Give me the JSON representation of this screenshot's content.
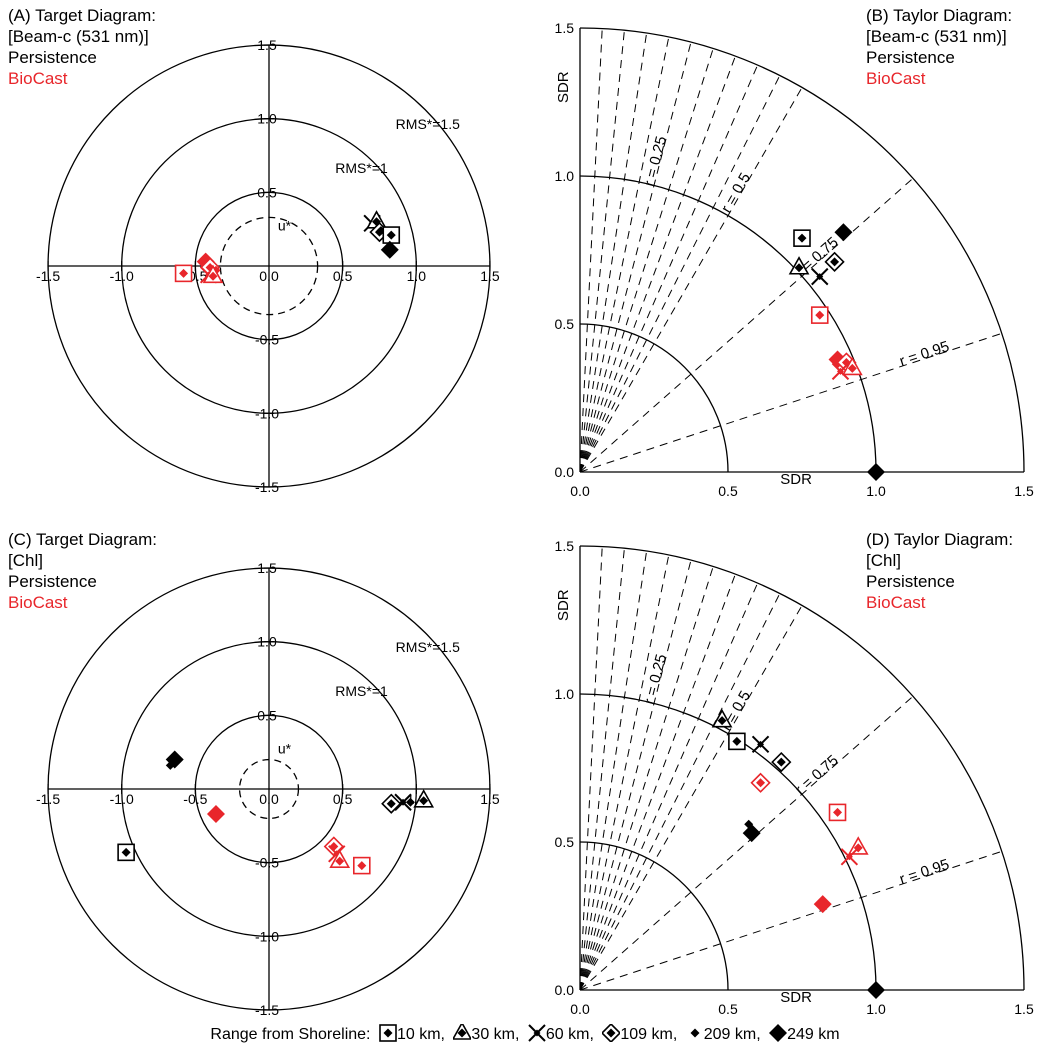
{
  "legend": {
    "title": "Range from Shoreline:",
    "items": [
      {
        "label": "10 km,",
        "marker": "boxed-diamond"
      },
      {
        "label": "30 km,",
        "marker": "triangle-diamond"
      },
      {
        "label": "60 km,",
        "marker": "cross"
      },
      {
        "label": "109 km,",
        "marker": "diamond-diamond"
      },
      {
        "label": "209 km,",
        "marker": "small-diamond"
      },
      {
        "label": "249 km",
        "marker": "large-diamond"
      }
    ]
  },
  "colors": {
    "persistence": "#000000",
    "biocast": "#e8262b"
  },
  "chart_data": [
    {
      "panel": "A",
      "type": "scatter",
      "title_lines": [
        "(A) Target Diagram:",
        "[Beam-c (531 nm)]"
      ],
      "series_labels": [
        "Persistence",
        "BioCast"
      ],
      "circles": [
        {
          "r": 0.5,
          "style": "solid"
        },
        {
          "r": 1.0,
          "style": "solid",
          "label": "RMS*=1"
        },
        {
          "r": 1.5,
          "style": "solid",
          "label": "RMS*=1.5"
        },
        {
          "r": 0.33,
          "style": "dashed",
          "label": "u*"
        }
      ],
      "xlim": [
        -1.5,
        1.5
      ],
      "ylim": [
        -1.5,
        1.5
      ],
      "ticks": [
        "-1.5",
        "-1.0",
        "-0.5",
        "0.0",
        "0.5",
        "1.0",
        "1.5"
      ],
      "points": [
        {
          "series": "Persistence",
          "marker": "cross",
          "x": 0.7,
          "y": 0.29
        },
        {
          "series": "Persistence",
          "marker": "triangle-diamond",
          "x": 0.73,
          "y": 0.3
        },
        {
          "series": "Persistence",
          "marker": "diamond-diamond",
          "x": 0.75,
          "y": 0.23
        },
        {
          "series": "Persistence",
          "marker": "small-diamond",
          "x": 0.76,
          "y": 0.24
        },
        {
          "series": "Persistence",
          "marker": "boxed-diamond",
          "x": 0.83,
          "y": 0.21
        },
        {
          "series": "Persistence",
          "marker": "large-diamond",
          "x": 0.82,
          "y": 0.11
        },
        {
          "series": "BioCast",
          "marker": "boxed-diamond",
          "x": -0.58,
          "y": -0.05
        },
        {
          "series": "BioCast",
          "marker": "large-diamond",
          "x": -0.43,
          "y": 0.03
        },
        {
          "series": "BioCast",
          "marker": "diamond-diamond",
          "x": -0.4,
          "y": -0.01
        },
        {
          "series": "BioCast",
          "marker": "small-diamond",
          "x": -0.36,
          "y": -0.03
        },
        {
          "series": "BioCast",
          "marker": "cross",
          "x": -0.41,
          "y": -0.06
        },
        {
          "series": "BioCast",
          "marker": "triangle-diamond",
          "x": -0.38,
          "y": -0.07
        }
      ]
    },
    {
      "panel": "B",
      "type": "scatter",
      "title_lines": [
        "(B) Taylor Diagram:",
        "[Beam-c (531 nm)]"
      ],
      "series_labels": [
        "Persistence",
        "BioCast"
      ],
      "xlabel": "SDR",
      "ylabel": "SDR",
      "arcs": [
        0.5,
        1.0,
        1.5
      ],
      "correlation_lines": [
        {
          "r": 0.25,
          "label": "r = 0.25"
        },
        {
          "r": 0.5,
          "label": "r = 0.5"
        },
        {
          "r": 0.75,
          "label": "r = 0.75"
        },
        {
          "r": 0.95,
          "label": "r = 0.95"
        }
      ],
      "xlim": [
        0,
        1.5
      ],
      "ylim": [
        0,
        1.5
      ],
      "xticks": [
        "0.0",
        "0.5",
        "1.0",
        "1.5"
      ],
      "yticks": [
        "0.0",
        "0.5",
        "1.0",
        "1.5"
      ],
      "reference_point": {
        "x": 1.0,
        "y": 0.0
      },
      "points": [
        {
          "series": "Persistence",
          "marker": "boxed-diamond",
          "x": 0.75,
          "y": 0.79
        },
        {
          "series": "Persistence",
          "marker": "large-diamond",
          "x": 0.89,
          "y": 0.81
        },
        {
          "series": "Persistence",
          "marker": "triangle-diamond",
          "x": 0.74,
          "y": 0.69
        },
        {
          "series": "Persistence",
          "marker": "cross",
          "x": 0.81,
          "y": 0.66
        },
        {
          "series": "Persistence",
          "marker": "diamond-diamond",
          "x": 0.86,
          "y": 0.71
        },
        {
          "series": "BioCast",
          "marker": "boxed-diamond",
          "x": 0.81,
          "y": 0.53
        },
        {
          "series": "BioCast",
          "marker": "large-diamond",
          "x": 0.87,
          "y": 0.38
        },
        {
          "series": "BioCast",
          "marker": "diamond-diamond",
          "x": 0.9,
          "y": 0.37
        },
        {
          "series": "BioCast",
          "marker": "triangle-diamond",
          "x": 0.92,
          "y": 0.35
        },
        {
          "series": "BioCast",
          "marker": "cross",
          "x": 0.88,
          "y": 0.34
        }
      ]
    },
    {
      "panel": "C",
      "type": "scatter",
      "title_lines": [
        "(C) Target Diagram:",
        "[Chl]"
      ],
      "series_labels": [
        "Persistence",
        "BioCast"
      ],
      "circles": [
        {
          "r": 0.5,
          "style": "solid"
        },
        {
          "r": 1.0,
          "style": "solid",
          "label": "RMS*=1"
        },
        {
          "r": 1.5,
          "style": "solid",
          "label": "RMS*=1.5"
        },
        {
          "r": 0.2,
          "style": "dashed",
          "label": "u*"
        }
      ],
      "xlim": [
        -1.5,
        1.5
      ],
      "ylim": [
        -1.5,
        1.5
      ],
      "ticks": [
        "-1.5",
        "-1.0",
        "-0.5",
        "0.0",
        "0.5",
        "1.0",
        "1.5"
      ],
      "points": [
        {
          "series": "Persistence",
          "marker": "large-diamond",
          "x": -0.64,
          "y": 0.2
        },
        {
          "series": "Persistence",
          "marker": "small-diamond",
          "x": -0.67,
          "y": 0.16
        },
        {
          "series": "Persistence",
          "marker": "boxed-diamond",
          "x": -0.97,
          "y": -0.43
        },
        {
          "series": "Persistence",
          "marker": "diamond-diamond",
          "x": 0.83,
          "y": -0.1
        },
        {
          "series": "Persistence",
          "marker": "cross",
          "x": 0.91,
          "y": -0.09
        },
        {
          "series": "Persistence",
          "marker": "small-diamond",
          "x": 0.96,
          "y": -0.09
        },
        {
          "series": "Persistence",
          "marker": "triangle-diamond",
          "x": 1.05,
          "y": -0.08
        },
        {
          "series": "BioCast",
          "marker": "large-diamond",
          "x": -0.36,
          "y": -0.17
        },
        {
          "series": "BioCast",
          "marker": "diamond-diamond",
          "x": 0.44,
          "y": -0.39
        },
        {
          "series": "BioCast",
          "marker": "cross",
          "x": 0.46,
          "y": -0.44
        },
        {
          "series": "BioCast",
          "marker": "triangle-diamond",
          "x": 0.48,
          "y": -0.49
        },
        {
          "series": "BioCast",
          "marker": "boxed-diamond",
          "x": 0.63,
          "y": -0.52
        }
      ]
    },
    {
      "panel": "D",
      "type": "scatter",
      "title_lines": [
        "(D) Taylor Diagram:",
        "[Chl]"
      ],
      "series_labels": [
        "Persistence",
        "BioCast"
      ],
      "xlabel": "SDR",
      "ylabel": "SDR",
      "arcs": [
        0.5,
        1.0,
        1.5
      ],
      "correlation_lines": [
        {
          "r": 0.25,
          "label": "r = 0.25"
        },
        {
          "r": 0.5,
          "label": "r = 0.5"
        },
        {
          "r": 0.75,
          "label": "r = 0.75"
        },
        {
          "r": 0.95,
          "label": "r = 0.95"
        }
      ],
      "xlim": [
        0,
        1.5
      ],
      "ylim": [
        0,
        1.5
      ],
      "xticks": [
        "0.0",
        "0.5",
        "1.0",
        "1.5"
      ],
      "yticks": [
        "0.0",
        "0.5",
        "1.0",
        "1.5"
      ],
      "reference_point": {
        "x": 1.0,
        "y": 0.0
      },
      "points": [
        {
          "series": "Persistence",
          "marker": "triangle-diamond",
          "x": 0.48,
          "y": 0.91
        },
        {
          "series": "Persistence",
          "marker": "boxed-diamond",
          "x": 0.53,
          "y": 0.84
        },
        {
          "series": "Persistence",
          "marker": "cross",
          "x": 0.61,
          "y": 0.83
        },
        {
          "series": "Persistence",
          "marker": "diamond-diamond",
          "x": 0.68,
          "y": 0.77
        },
        {
          "series": "Persistence",
          "marker": "large-diamond",
          "x": 0.58,
          "y": 0.53
        },
        {
          "series": "Persistence",
          "marker": "small-diamond",
          "x": 0.57,
          "y": 0.56
        },
        {
          "series": "BioCast",
          "marker": "diamond-diamond",
          "x": 0.61,
          "y": 0.7
        },
        {
          "series": "BioCast",
          "marker": "boxed-diamond",
          "x": 0.87,
          "y": 0.6
        },
        {
          "series": "BioCast",
          "marker": "triangle-diamond",
          "x": 0.94,
          "y": 0.48
        },
        {
          "series": "BioCast",
          "marker": "cross",
          "x": 0.91,
          "y": 0.45
        },
        {
          "series": "BioCast",
          "marker": "large-diamond",
          "x": 0.82,
          "y": 0.29
        }
      ]
    }
  ]
}
